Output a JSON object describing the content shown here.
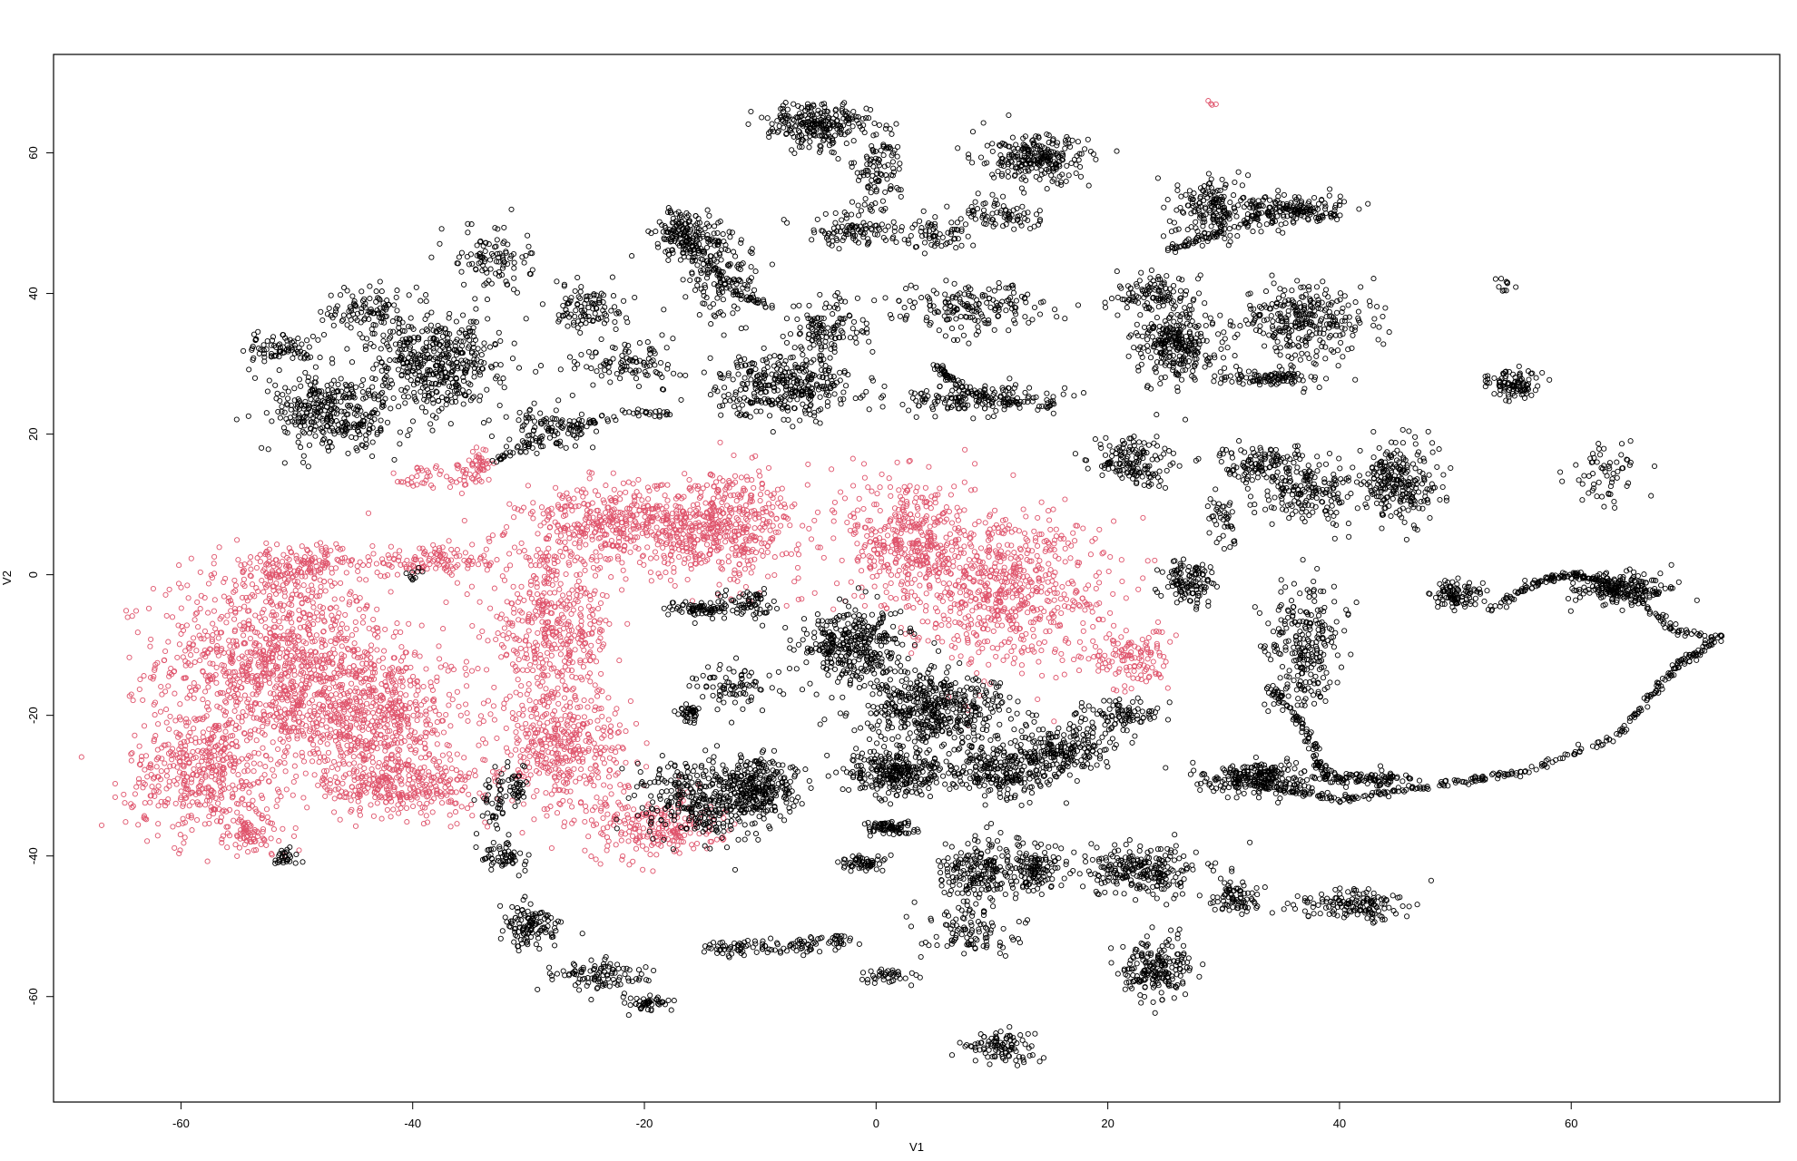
{
  "chart_data": {
    "type": "scatter",
    "title": "",
    "xlabel": "V1",
    "ylabel": "V2",
    "xlim": [
      -71,
      78
    ],
    "ylim": [
      -75,
      74
    ],
    "xticks": [
      "-60",
      "-40",
      "-20",
      "0",
      "20",
      "40",
      "60"
    ],
    "yticks": [
      "-60",
      "-40",
      "-20",
      "0",
      "20",
      "40",
      "60"
    ],
    "x_tick_values": [
      -60,
      -40,
      -20,
      0,
      20,
      40,
      60
    ],
    "y_tick_values": [
      -60,
      -40,
      -20,
      0,
      20,
      40,
      60
    ],
    "grid": false,
    "legend": "none",
    "marker": "open-circle",
    "series": [
      {
        "color": "#DF536B",
        "regions": [
          {
            "cx": -52,
            "cy": -12,
            "rx": 9,
            "ry": 11,
            "n": 900
          },
          {
            "cx": -44,
            "cy": -20,
            "rx": 8,
            "ry": 9,
            "n": 700
          },
          {
            "cx": -41,
            "cy": -30,
            "rx": 6,
            "ry": 4,
            "n": 300
          },
          {
            "cx": -58,
            "cy": -28,
            "rx": 6,
            "ry": 8,
            "n": 450
          },
          {
            "cx": -54,
            "cy": -37,
            "rx": 3,
            "ry": 3,
            "n": 80
          },
          {
            "cx": -50,
            "cy": 1,
            "rx": 6,
            "ry": 3,
            "n": 200
          },
          {
            "cx": -38,
            "cy": 2,
            "rx": 7,
            "ry": 2,
            "n": 120
          },
          {
            "cx": -28,
            "cy": -8,
            "rx": 5,
            "ry": 10,
            "n": 450
          },
          {
            "cx": -27,
            "cy": -25,
            "rx": 5,
            "ry": 8,
            "n": 400
          },
          {
            "cx": -22,
            "cy": 7,
            "rx": 8,
            "ry": 5,
            "n": 450
          },
          {
            "cx": -13,
            "cy": 7,
            "rx": 6,
            "ry": 7,
            "n": 450
          },
          {
            "cx": -19,
            "cy": -36,
            "rx": 5,
            "ry": 4,
            "n": 220
          },
          {
            "cx": 3,
            "cy": 5,
            "rx": 5,
            "ry": 9,
            "n": 400
          },
          {
            "cx": 11,
            "cy": -2,
            "rx": 8,
            "ry": 10,
            "n": 650
          },
          {
            "cx": 22,
            "cy": -12,
            "rx": 3,
            "ry": 4,
            "n": 120
          },
          {
            "cx": -37,
            "cy": 14,
            "rx": 4,
            "ry": 2,
            "n": 60
          },
          {
            "cx": -34,
            "cy": 16,
            "rx": 1,
            "ry": 2,
            "n": 30
          },
          {
            "cx": 29,
            "cy": 67,
            "rx": 0.4,
            "ry": 0.5,
            "n": 4
          }
        ]
      },
      {
        "color": "#000000",
        "regions": [
          {
            "cx": -47,
            "cy": 23,
            "rx": 5,
            "ry": 5,
            "n": 350
          },
          {
            "cx": -38,
            "cy": 30,
            "rx": 5,
            "ry": 6,
            "n": 450
          },
          {
            "cx": -51,
            "cy": 32,
            "rx": 3,
            "ry": 2,
            "n": 80
          },
          {
            "cx": -44,
            "cy": 38,
            "rx": 3,
            "ry": 3,
            "n": 100
          },
          {
            "cx": -33,
            "cy": 45,
            "rx": 3,
            "ry": 4,
            "n": 100
          },
          {
            "cx": -25,
            "cy": 38,
            "rx": 3,
            "ry": 3,
            "n": 100
          },
          {
            "cx": -21,
            "cy": 30,
            "rx": 4,
            "ry": 3,
            "n": 100
          },
          {
            "cx": -28,
            "cy": 21,
            "rx": 4,
            "ry": 3,
            "n": 100
          },
          {
            "cx": -16,
            "cy": 48,
            "rx": 3,
            "ry": 3,
            "n": 180
          },
          {
            "cx": -13,
            "cy": 42,
            "rx": 3,
            "ry": 5,
            "n": 120
          },
          {
            "cx": -5,
            "cy": 64,
            "rx": 4,
            "ry": 3,
            "n": 250
          },
          {
            "cx": 0,
            "cy": 57,
            "rx": 2,
            "ry": 5,
            "n": 100
          },
          {
            "cx": -2,
            "cy": 49,
            "rx": 4,
            "ry": 2,
            "n": 100
          },
          {
            "cx": 5,
            "cy": 48,
            "rx": 3,
            "ry": 2,
            "n": 60
          },
          {
            "cx": 14,
            "cy": 59,
            "rx": 4,
            "ry": 3,
            "n": 250
          },
          {
            "cx": 11,
            "cy": 51,
            "rx": 4,
            "ry": 2,
            "n": 80
          },
          {
            "cx": -8,
            "cy": 27,
            "rx": 5,
            "ry": 4,
            "n": 350
          },
          {
            "cx": -4,
            "cy": 35,
            "rx": 3,
            "ry": 4,
            "n": 120
          },
          {
            "cx": 8,
            "cy": 38,
            "rx": 6,
            "ry": 3,
            "n": 180
          },
          {
            "cx": 9,
            "cy": 25,
            "rx": 7,
            "ry": 2,
            "n": 160
          },
          {
            "cx": 29,
            "cy": 52,
            "rx": 3,
            "ry": 4,
            "n": 180
          },
          {
            "cx": 36,
            "cy": 52,
            "rx": 4,
            "ry": 2,
            "n": 150
          },
          {
            "cx": 26,
            "cy": 33,
            "rx": 3,
            "ry": 5,
            "n": 300
          },
          {
            "cx": 34,
            "cy": 28,
            "rx": 4,
            "ry": 1,
            "n": 100
          },
          {
            "cx": 37,
            "cy": 36,
            "rx": 5,
            "ry": 5,
            "n": 300
          },
          {
            "cx": 24,
            "cy": 40,
            "rx": 3,
            "ry": 2,
            "n": 100
          },
          {
            "cx": 55,
            "cy": 27,
            "rx": 2,
            "ry": 2,
            "n": 100
          },
          {
            "cx": 63,
            "cy": 15,
            "rx": 3,
            "ry": 5,
            "n": 60
          },
          {
            "cx": 54,
            "cy": 41,
            "rx": 1,
            "ry": 1,
            "n": 10
          },
          {
            "cx": 22,
            "cy": 16,
            "rx": 3,
            "ry": 3,
            "n": 150
          },
          {
            "cx": 33,
            "cy": 16,
            "rx": 4,
            "ry": 2,
            "n": 100
          },
          {
            "cx": 37,
            "cy": 12,
            "rx": 4,
            "ry": 4,
            "n": 200
          },
          {
            "cx": 45,
            "cy": 13,
            "rx": 3,
            "ry": 5,
            "n": 250
          },
          {
            "cx": 37,
            "cy": -10,
            "rx": 3,
            "ry": 8,
            "n": 250
          },
          {
            "cx": 30,
            "cy": 8,
            "rx": 1,
            "ry": 3,
            "n": 40
          },
          {
            "cx": 27,
            "cy": -1,
            "rx": 2,
            "ry": 3,
            "n": 120
          },
          {
            "cx": 33,
            "cy": -29,
            "rx": 4,
            "ry": 2,
            "n": 250
          },
          {
            "cx": 42,
            "cy": -29,
            "rx": 4,
            "ry": 1,
            "n": 100
          },
          {
            "cx": 50,
            "cy": -3,
            "rx": 2,
            "ry": 2,
            "n": 100
          },
          {
            "cx": 64,
            "cy": -2,
            "rx": 4,
            "ry": 2,
            "n": 200
          },
          {
            "cx": -15,
            "cy": -5,
            "rx": 3,
            "ry": 1,
            "n": 80
          },
          {
            "cx": -11,
            "cy": -4,
            "rx": 2,
            "ry": 2,
            "n": 60
          },
          {
            "cx": -12,
            "cy": -16,
            "rx": 3,
            "ry": 3,
            "n": 80
          },
          {
            "cx": -16,
            "cy": -20,
            "rx": 1,
            "ry": 1,
            "n": 40
          },
          {
            "cx": -2,
            "cy": -10,
            "rx": 4,
            "ry": 5,
            "n": 350
          },
          {
            "cx": 5,
            "cy": -19,
            "rx": 6,
            "ry": 5,
            "n": 500
          },
          {
            "cx": 2,
            "cy": -28,
            "rx": 4,
            "ry": 3,
            "n": 300
          },
          {
            "cx": 11,
            "cy": -28,
            "rx": 4,
            "ry": 3,
            "n": 250
          },
          {
            "cx": 16,
            "cy": -25,
            "rx": 4,
            "ry": 3,
            "n": 200
          },
          {
            "cx": 21,
            "cy": -20,
            "rx": 3,
            "ry": 2,
            "n": 100
          },
          {
            "cx": -15,
            "cy": -32,
            "rx": 5,
            "ry": 5,
            "n": 350
          },
          {
            "cx": -10,
            "cy": -30,
            "rx": 3,
            "ry": 4,
            "n": 250
          },
          {
            "cx": 1,
            "cy": -36,
            "rx": 2,
            "ry": 1,
            "n": 80
          },
          {
            "cx": -1,
            "cy": -41,
            "rx": 2,
            "ry": 1,
            "n": 60
          },
          {
            "cx": 9,
            "cy": -42,
            "rx": 3,
            "ry": 4,
            "n": 200
          },
          {
            "cx": 14,
            "cy": -42,
            "rx": 2,
            "ry": 3,
            "n": 120
          },
          {
            "cx": 23,
            "cy": -42,
            "rx": 5,
            "ry": 3,
            "n": 250
          },
          {
            "cx": 8,
            "cy": -51,
            "rx": 4,
            "ry": 3,
            "n": 100
          },
          {
            "cx": 1,
            "cy": -57,
            "rx": 2,
            "ry": 1,
            "n": 40
          },
          {
            "cx": -9,
            "cy": -53,
            "rx": 4,
            "ry": 1,
            "n": 60
          },
          {
            "cx": -13,
            "cy": -53,
            "rx": 2,
            "ry": 1,
            "n": 30
          },
          {
            "cx": -4,
            "cy": -52,
            "rx": 2,
            "ry": 1,
            "n": 30
          },
          {
            "cx": 24,
            "cy": -56,
            "rx": 3,
            "ry": 4,
            "n": 200
          },
          {
            "cx": 11,
            "cy": -67,
            "rx": 3,
            "ry": 2,
            "n": 100
          },
          {
            "cx": 31,
            "cy": -46,
            "rx": 2,
            "ry": 2,
            "n": 80
          },
          {
            "cx": 41,
            "cy": -47,
            "rx": 4,
            "ry": 2,
            "n": 150
          },
          {
            "cx": -30,
            "cy": -50,
            "rx": 2,
            "ry": 3,
            "n": 120
          },
          {
            "cx": -24,
            "cy": -57,
            "rx": 4,
            "ry": 2,
            "n": 100
          },
          {
            "cx": -20,
            "cy": -61,
            "rx": 2,
            "ry": 1,
            "n": 50
          },
          {
            "cx": -32,
            "cy": -40,
            "rx": 2,
            "ry": 2,
            "n": 60
          },
          {
            "cx": -31,
            "cy": -30,
            "rx": 1,
            "ry": 3,
            "n": 40
          },
          {
            "cx": -51,
            "cy": -40,
            "rx": 1,
            "ry": 1,
            "n": 30
          },
          {
            "cx": -33,
            "cy": -32,
            "rx": 1,
            "ry": 4,
            "n": 40
          },
          {
            "cx": -40,
            "cy": 0,
            "rx": 1,
            "ry": 1,
            "n": 10
          }
        ],
        "curves": [
          {
            "x": [
              33,
              40,
              48,
              56,
              64,
              69,
              73
            ],
            "y": [
              -30,
              -32,
              -30,
              -28,
              -23,
              -13,
              -9
            ],
            "n": 300
          },
          {
            "x": [
              53,
              57,
              60,
              63,
              66,
              69,
              73
            ],
            "y": [
              -5,
              -1,
              0,
              -1,
              -4,
              -8,
              -9
            ],
            "n": 200
          },
          {
            "x": [
              34,
              35,
              37,
              38,
              39
            ],
            "y": [
              -16,
              -18,
              -22,
              -26,
              -29
            ],
            "n": 100
          },
          {
            "x": [
              25,
              30,
              35,
              40
            ],
            "y": [
              46,
              49,
              52,
              51
            ],
            "n": 100
          },
          {
            "x": [
              -18,
              -15,
              -12,
              -9
            ],
            "y": [
              52,
              45,
              40,
              38
            ],
            "n": 80
          },
          {
            "x": [
              -33,
              -28,
              -22,
              -18
            ],
            "y": [
              16,
              20,
              23,
              23
            ],
            "n": 80
          },
          {
            "x": [
              5,
              7,
              10,
              15
            ],
            "y": [
              30,
              27,
              25,
              24
            ],
            "n": 80
          }
        ]
      }
    ]
  }
}
